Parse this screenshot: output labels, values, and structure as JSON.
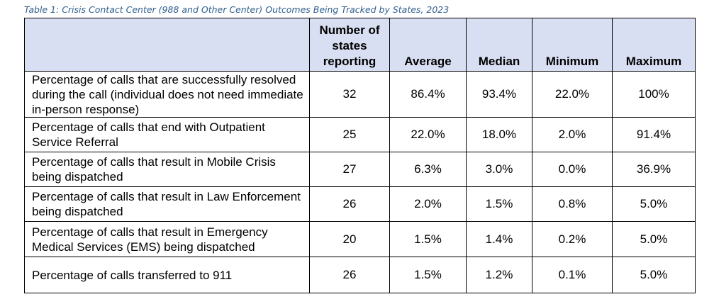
{
  "caption": "Table 1: Crisis Contact Center (988 and Other Center) Outcomes Being Tracked by States, 2023",
  "table": {
    "headers": [
      "",
      "Number of states reporting",
      "Average",
      "Median",
      "Minimum",
      "Maximum"
    ],
    "rows": [
      {
        "label": "Percentage of calls that are successfully resolved during the call (individual does not need immediate in-person response)",
        "states": "32",
        "average": "86.4%",
        "median": "93.4%",
        "minimum": "22.0%",
        "maximum": "100%"
      },
      {
        "label": "Percentage of calls that end with Outpatient Service Referral",
        "states": "25",
        "average": "22.0%",
        "median": "18.0%",
        "minimum": "2.0%",
        "maximum": "91.4%"
      },
      {
        "label": "Percentage of calls that result in Mobile Crisis being dispatched",
        "states": "27",
        "average": "6.3%",
        "median": "3.0%",
        "minimum": "0.0%",
        "maximum": "36.9%"
      },
      {
        "label": "Percentage of calls that result in Law Enforcement being dispatched",
        "states": "26",
        "average": "2.0%",
        "median": "1.5%",
        "minimum": "0.8%",
        "maximum": "5.0%"
      },
      {
        "label": "Percentage of calls that result in Emergency Medical Services (EMS) being dispatched",
        "states": "20",
        "average": "1.5%",
        "median": "1.4%",
        "minimum": "0.2%",
        "maximum": "5.0%"
      },
      {
        "label": "Percentage of calls transferred to 911",
        "states": "26",
        "average": "1.5%",
        "median": "1.2%",
        "minimum": "0.1%",
        "maximum": "5.0%"
      }
    ]
  },
  "colors": {
    "header_bg": "#d9dff2",
    "caption": "#2f5f8f"
  }
}
